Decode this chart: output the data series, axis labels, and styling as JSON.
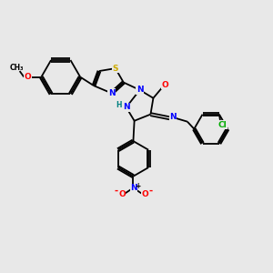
{
  "background_color": "#e8e8e8",
  "bond_color": "#000000",
  "atom_colors": {
    "N": "#0000ff",
    "O": "#ff0000",
    "S": "#ccaa00",
    "Cl": "#00aa00",
    "C": "#000000",
    "H": "#008080"
  },
  "figsize": [
    3.0,
    3.0
  ],
  "dpi": 100
}
